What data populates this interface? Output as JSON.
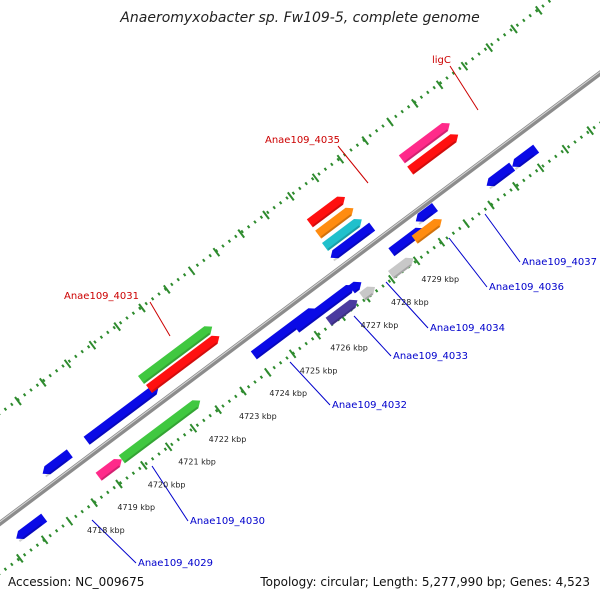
{
  "title": "Anaeromyxobacter sp. Fw109-5, complete genome",
  "accession": "Accession: NC_009675",
  "topology": "Topology: circular; Length: 5,277,990 bp; Genes: 4,523",
  "colors": {
    "backbone": "#8c8c8c",
    "tick_dot": "#2e8b2e",
    "cds": "#0a0ae6",
    "trna": "#ff2a8a",
    "rrna": "#40c840",
    "green_dark": "#2a9a2a",
    "red": "#ff1010",
    "orange": "#ff8c10",
    "teal": "#20c0cc",
    "purple": "#4a3aa0",
    "gray": "#c8c8c8",
    "label_red": "#cc0000",
    "label_blue": "#0000cc"
  },
  "tick_labels": [
    "4718 kbp",
    "4719 kbp",
    "4720 kbp",
    "4721 kbp",
    "4722 kbp",
    "4723 kbp",
    "4724 kbp",
    "4725 kbp",
    "4726 kbp",
    "4727 kbp",
    "4728 kbp",
    "4729 kbp"
  ],
  "gene_labels": [
    {
      "id": "ligC",
      "text": "ligC",
      "color": "red"
    },
    {
      "id": "4035",
      "text": "Anae109_4035",
      "color": "red"
    },
    {
      "id": "4031",
      "text": "Anae109_4031",
      "color": "red"
    },
    {
      "id": "4037",
      "text": "Anae109_4037",
      "color": "blue"
    },
    {
      "id": "4036",
      "text": "Anae109_4036",
      "color": "blue"
    },
    {
      "id": "4034",
      "text": "Anae109_4034",
      "color": "blue"
    },
    {
      "id": "4033",
      "text": "Anae109_4033",
      "color": "blue"
    },
    {
      "id": "4032",
      "text": "Anae109_4032",
      "color": "blue"
    },
    {
      "id": "4030",
      "text": "Anae109_4030",
      "color": "blue"
    },
    {
      "id": "4029",
      "text": "Anae109_4029",
      "color": "blue"
    }
  ]
}
